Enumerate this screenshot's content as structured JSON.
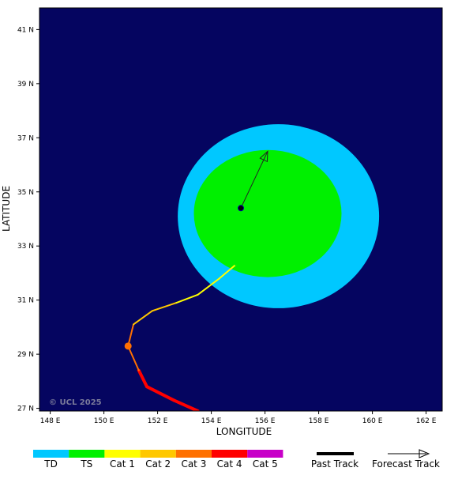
{
  "map": {
    "x_label": "LONGITUDE",
    "y_label": "LATITUDE",
    "copyright": "© UCL 2025",
    "colors": {
      "ocean": "#050560",
      "wind_outer": "#00c8ff",
      "wind_inner": "#00f000",
      "frame": "#000000"
    },
    "lon_range": [
      147.6,
      162.6
    ],
    "lat_range": [
      26.9,
      41.8
    ],
    "lon_ticks": [
      {
        "value": 148,
        "label": "148 E"
      },
      {
        "value": 150,
        "label": "150 E"
      },
      {
        "value": 152,
        "label": "152 E"
      },
      {
        "value": 154,
        "label": "154 E"
      },
      {
        "value": 156,
        "label": "156 E"
      },
      {
        "value": 158,
        "label": "158 E"
      },
      {
        "value": 160,
        "label": "160 E"
      },
      {
        "value": 162,
        "label": "162 E"
      }
    ],
    "lat_ticks": [
      {
        "value": 27,
        "label": "27 N"
      },
      {
        "value": 29,
        "label": "29 N"
      },
      {
        "value": 31,
        "label": "31 N"
      },
      {
        "value": 33,
        "label": "33 N"
      },
      {
        "value": 35,
        "label": "35 N"
      },
      {
        "value": 37,
        "label": "37 N"
      },
      {
        "value": 39,
        "label": "39 N"
      },
      {
        "value": 41,
        "label": "41 N"
      }
    ],
    "wind_fields": [
      {
        "name": "ts-wind-outer",
        "category": "TD",
        "center": [
          156.5,
          34.1
        ],
        "radius_lon": 3.75,
        "radius_lat": 3.4
      },
      {
        "name": "ts-wind-inner",
        "category": "TS",
        "center": [
          156.1,
          34.2
        ],
        "radius_lon": 2.75,
        "radius_lat": 2.35
      }
    ],
    "past_track": [
      {
        "lon": 153.5,
        "lat": 26.9,
        "category": "Cat 4"
      },
      {
        "lon": 152.6,
        "lat": 27.3,
        "category": "Cat 4"
      },
      {
        "lon": 151.6,
        "lat": 27.8,
        "category": "Cat 4"
      },
      {
        "lon": 151.3,
        "lat": 28.4,
        "category": "Cat 4"
      },
      {
        "lon": 150.9,
        "lat": 29.3,
        "category": "Cat 3"
      },
      {
        "lon": 151.1,
        "lat": 30.1,
        "category": "Cat 3"
      },
      {
        "lon": 151.8,
        "lat": 30.6,
        "category": "Cat 2"
      },
      {
        "lon": 152.7,
        "lat": 30.9,
        "category": "Cat 2"
      },
      {
        "lon": 153.5,
        "lat": 31.2,
        "category": "Cat 1"
      },
      {
        "lon": 154.3,
        "lat": 31.8,
        "category": "Cat 1"
      },
      {
        "lon": 154.9,
        "lat": 32.3,
        "category": "Cat 1"
      },
      {
        "lon": 155.0,
        "lat": 33.4,
        "category": "TS"
      },
      {
        "lon": 155.1,
        "lat": 34.4,
        "category": "TS"
      }
    ],
    "markers": [
      {
        "name": "earlier-position-marker",
        "lon": 150.9,
        "lat": 29.3,
        "category": "Cat 3"
      },
      {
        "name": "current-position-marker",
        "lon": 155.1,
        "lat": 34.4,
        "category": "current"
      }
    ],
    "forecast_track": [
      {
        "lon": 155.1,
        "lat": 34.4
      },
      {
        "lon": 156.1,
        "lat": 36.5
      }
    ]
  },
  "legend": {
    "categories": [
      {
        "label": "TD",
        "color": "#00c8ff"
      },
      {
        "label": "TS",
        "color": "#00f000"
      },
      {
        "label": "Cat 1",
        "color": "#ffff00"
      },
      {
        "label": "Cat 2",
        "color": "#ffc800"
      },
      {
        "label": "Cat 3",
        "color": "#ff7000"
      },
      {
        "label": "Cat 4",
        "color": "#ff0000"
      },
      {
        "label": "Cat 5",
        "color": "#c800c8"
      }
    ],
    "past_track_label": "Past Track",
    "forecast_track_label": "Forecast Track"
  }
}
